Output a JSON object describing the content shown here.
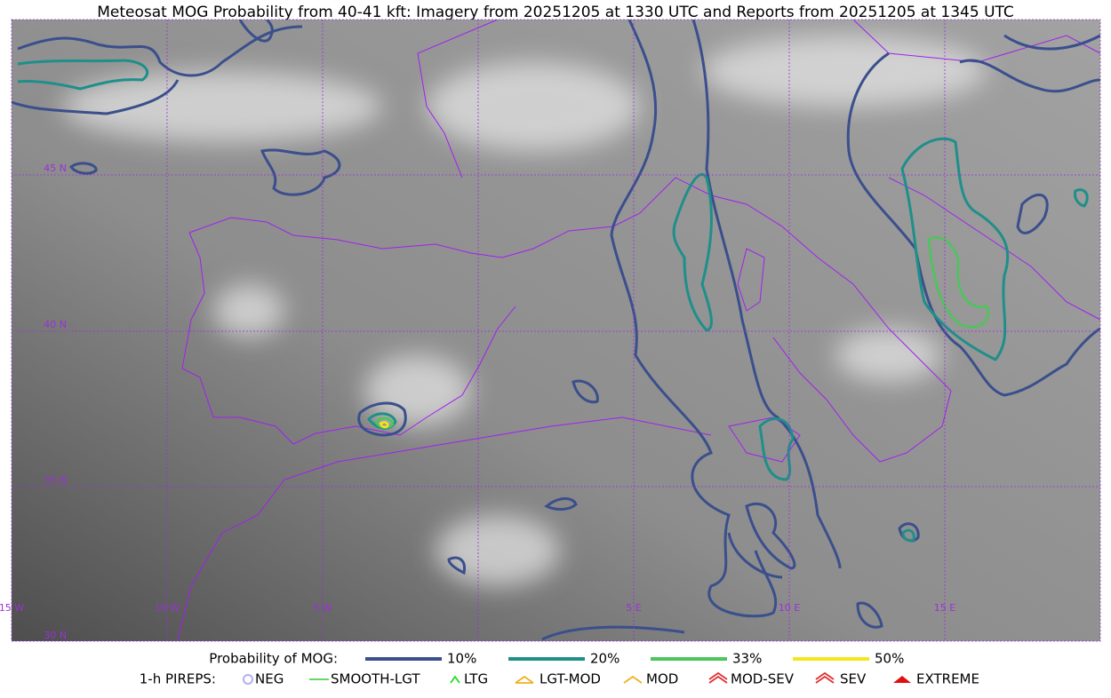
{
  "title": "Meteosat MOG Probability from 40-41 kft: Imagery from 20251205 at 1330 UTC and Reports from 20251205 at 1345 UTC",
  "lat_labels": [
    "45 N",
    "40 N",
    "35 N",
    "30 N"
  ],
  "lon_labels": [
    "15 W",
    "10 W",
    "5 W",
    "5 E",
    "10 E",
    "15 E"
  ],
  "legend": {
    "title": "Probability of MOG:",
    "items": [
      {
        "label": "10%",
        "color": "#3a4f8c"
      },
      {
        "label": "20%",
        "color": "#1f8f8a"
      },
      {
        "label": "33%",
        "color": "#4ac65a"
      },
      {
        "label": "50%",
        "color": "#f5e61c"
      }
    ]
  },
  "pireps": {
    "title": "1-h PIREPS:",
    "items": [
      {
        "label": "NEG",
        "color": "#b0b0f0"
      },
      {
        "label": "SMOOTH-LGT",
        "color": "#33cc33"
      },
      {
        "label": "LTG",
        "color": "#22dd22"
      },
      {
        "label": "LGT-MOD",
        "color": "#f0b020"
      },
      {
        "label": "MOD",
        "color": "#f0b020"
      },
      {
        "label": "MOD-SEV",
        "color": "#e03030"
      },
      {
        "label": "SEV",
        "color": "#e03030"
      },
      {
        "label": "EXTREME",
        "color": "#e01010"
      }
    ]
  }
}
